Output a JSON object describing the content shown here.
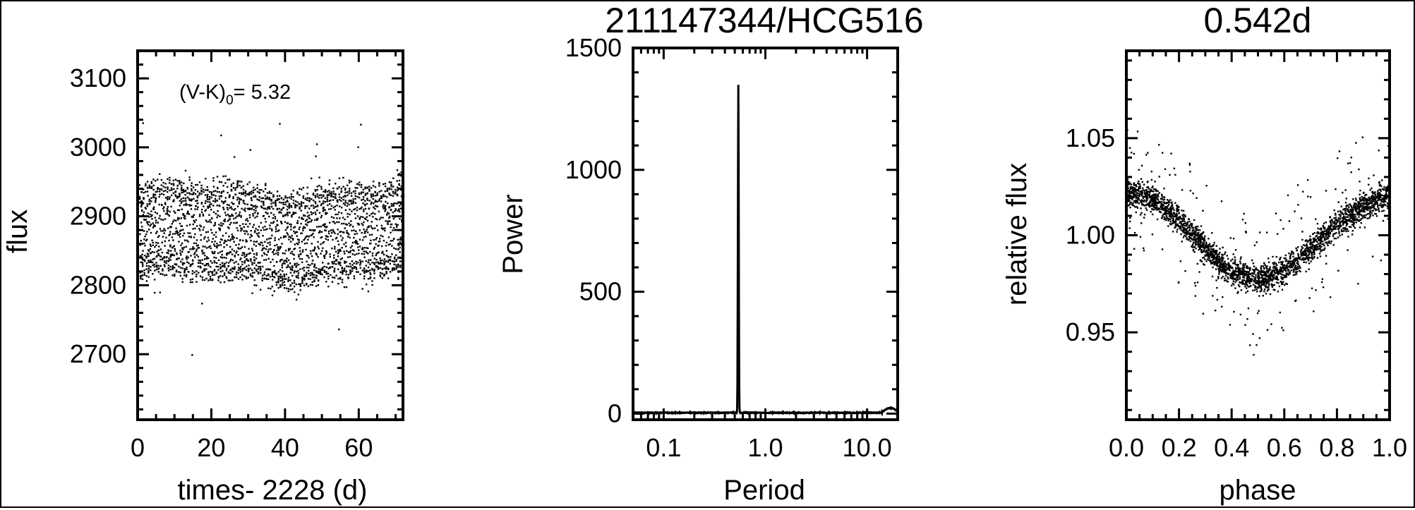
{
  "chart_data": [
    {
      "type": "scatter",
      "title": "",
      "xlabel": "times- 2228 (d)",
      "ylabel": "flux",
      "xlim": [
        0,
        72
      ],
      "ylim": [
        2605,
        3140
      ],
      "xticks": [
        "0",
        "20",
        "40",
        "60"
      ],
      "yticks": [
        "2700",
        "2800",
        "2900",
        "3000",
        "3100"
      ],
      "annotation": {
        "text": "(V-K)",
        "subscript": "0",
        "suffix": "= 5.32"
      },
      "mean_flux": 2875,
      "band": [
        2810,
        2940
      ],
      "grid": false,
      "color": "#000000"
    },
    {
      "type": "line",
      "title": "211147344/HCG516",
      "xlabel": "Period",
      "ylabel": "Power",
      "xscale": "log",
      "xlim": [
        0.05,
        20
      ],
      "ylim": [
        -25,
        1500
      ],
      "xticks": [
        "0.1",
        "1.0",
        "10.0"
      ],
      "yticks": [
        "0",
        "500",
        "1000",
        "1500"
      ],
      "peak": {
        "period": 0.542,
        "power": 1345
      },
      "grid": false,
      "color": "#000000"
    },
    {
      "type": "scatter",
      "title": "0.542d",
      "xlabel": "phase",
      "ylabel": "relative flux",
      "xlim": [
        0,
        1
      ],
      "ylim": [
        0.905,
        1.095
      ],
      "xticks": [
        "0.0",
        "0.2",
        "0.4",
        "0.6",
        "0.8",
        "1.0"
      ],
      "yticks": [
        "0.95",
        "1.00",
        "1.05"
      ],
      "binned_curve": {
        "phase": [
          0.0,
          0.1,
          0.2,
          0.3,
          0.4,
          0.5,
          0.6,
          0.7,
          0.8,
          0.9,
          1.0
        ],
        "flux": [
          1.022,
          1.019,
          1.008,
          0.993,
          0.981,
          0.977,
          0.982,
          0.993,
          1.005,
          1.015,
          1.021
        ]
      },
      "grid": false,
      "color": "#000000"
    }
  ]
}
